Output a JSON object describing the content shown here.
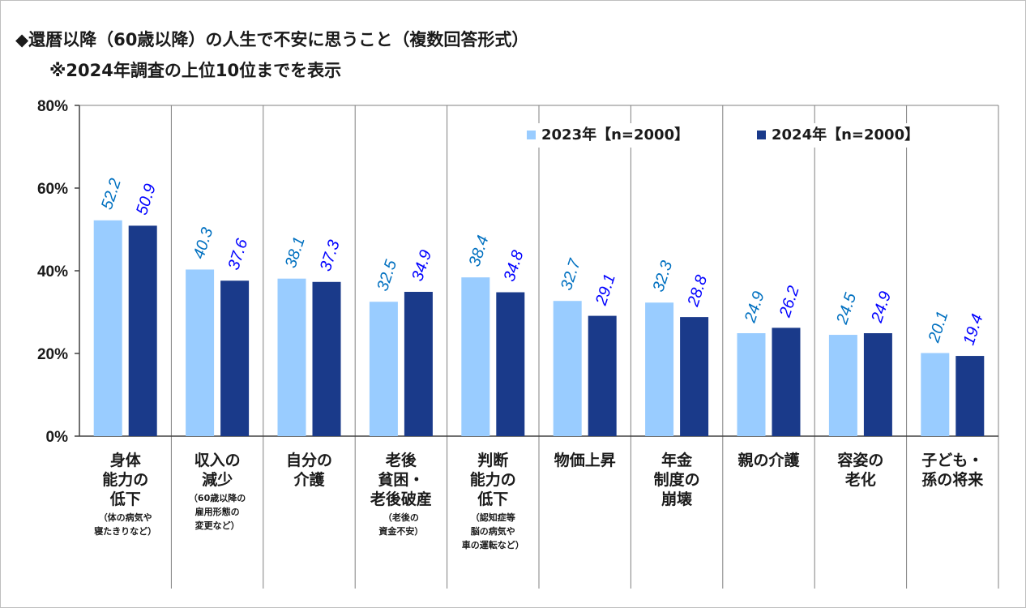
{
  "header": {
    "title": "◆還暦以降（60歳以降）の人生で不安に思うこと（複数回答形式）",
    "subtitle": "※2024年調査の上位10位までを表示"
  },
  "chart_data": {
    "type": "bar",
    "ylim": [
      0,
      80
    ],
    "yticks": [
      "0%",
      "20%",
      "40%",
      "60%",
      "80%"
    ],
    "legend_position": "top-right",
    "categories": [
      {
        "main": [
          "身体",
          "能力の",
          "低下"
        ],
        "sub": [
          "（体の病気や",
          "寝たきりなど）"
        ]
      },
      {
        "main": [
          "収入の",
          "減少"
        ],
        "sub": [
          "（60歳以降の",
          "雇用形態の",
          "変更など）"
        ]
      },
      {
        "main": [
          "自分の",
          "介護"
        ],
        "sub": []
      },
      {
        "main": [
          "老後",
          "貧困・",
          "老後破産"
        ],
        "sub": [
          "（老後の",
          "資金不安）"
        ]
      },
      {
        "main": [
          "判断",
          "能力の",
          "低下"
        ],
        "sub": [
          "（認知症等",
          "脳の病気や",
          "車の運転など）"
        ]
      },
      {
        "main": [
          "物価上昇"
        ],
        "sub": []
      },
      {
        "main": [
          "年金",
          "制度の",
          "崩壊"
        ],
        "sub": []
      },
      {
        "main": [
          "親の介護"
        ],
        "sub": []
      },
      {
        "main": [
          "容姿の",
          "老化"
        ],
        "sub": []
      },
      {
        "main": [
          "子ども・",
          "孫の将来"
        ],
        "sub": []
      }
    ],
    "series": [
      {
        "name": "2023年【n=2000】",
        "color": "#99ccff",
        "label_color": "#0070c0",
        "values": [
          52.2,
          40.3,
          38.1,
          32.5,
          38.4,
          32.7,
          32.3,
          24.9,
          24.5,
          20.1
        ]
      },
      {
        "name": "2024年【n=2000】",
        "color": "#1a3a8a",
        "label_color": "#0000ff",
        "values": [
          50.9,
          37.6,
          37.3,
          34.9,
          34.8,
          29.1,
          28.8,
          26.2,
          24.9,
          19.4
        ]
      }
    ]
  }
}
